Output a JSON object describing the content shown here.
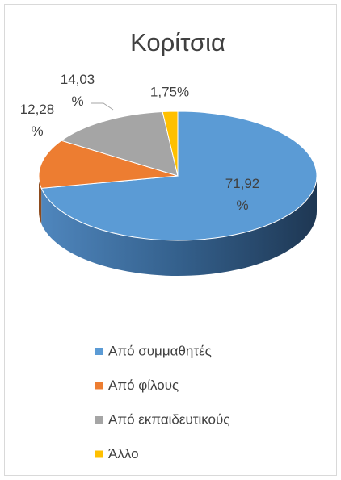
{
  "chart_data": {
    "type": "pie",
    "title": "Κορίτσια",
    "categories": [
      "Από συμμαθητές",
      "Από φίλους",
      "Από εκπαιδευτικούς",
      "Άλλο"
    ],
    "values": [
      71.92,
      12.28,
      14.03,
      1.75
    ],
    "value_labels": [
      "71,92 %",
      "12,28 %",
      "14,03 %",
      "1,75%"
    ],
    "colors": [
      "#5b9bd5",
      "#ed7d31",
      "#a5a5a5",
      "#ffc000"
    ],
    "legend": "bottom"
  }
}
